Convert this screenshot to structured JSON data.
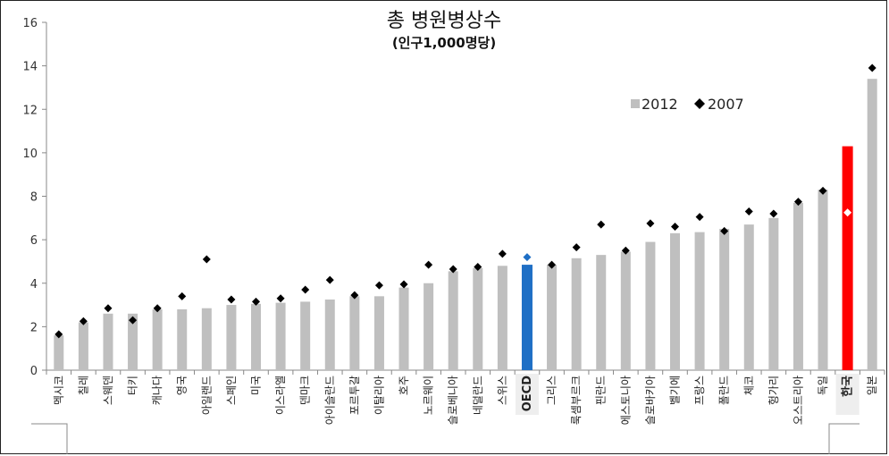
{
  "chart_data": {
    "type": "bar",
    "title": "총 병원병상수",
    "subtitle": "(인구1,000명당)",
    "ylim": [
      0,
      16
    ],
    "yticks": [
      0,
      2,
      4,
      6,
      8,
      10,
      12,
      14,
      16
    ],
    "grid": false,
    "legend_position": "top-right",
    "categories": [
      "멕시코",
      "칠레",
      "스웨덴",
      "터키",
      "캐나다",
      "영국",
      "아일랜드",
      "스페인",
      "미국",
      "이스라엘",
      "덴마크",
      "아이슬란드",
      "포르투갈",
      "이탈리아",
      "호주",
      "노르웨이",
      "슬로베니아",
      "네덜란드",
      "스위스",
      "OECD",
      "그리스",
      "룩셈부르크",
      "핀란드",
      "에스토니아",
      "슬로바키아",
      "벨기에",
      "프랑스",
      "폴란드",
      "체코",
      "헝가리",
      "오스트리아",
      "독일",
      "한국",
      "일본"
    ],
    "highlight": {
      "OECD": "#1f6fc5",
      "한국": "#ff0000"
    },
    "series": [
      {
        "name": "2012",
        "kind": "bar",
        "color": "#bfbfbf",
        "values": [
          1.6,
          2.2,
          2.6,
          2.6,
          2.8,
          2.8,
          2.85,
          3.0,
          3.05,
          3.1,
          3.15,
          3.25,
          3.4,
          3.4,
          3.8,
          4.0,
          4.55,
          4.7,
          4.8,
          4.85,
          4.85,
          5.15,
          5.3,
          5.45,
          5.9,
          6.3,
          6.35,
          6.5,
          6.7,
          7.0,
          7.7,
          8.3,
          10.3,
          13.4
        ]
      },
      {
        "name": "2007",
        "kind": "marker",
        "color": "#000000",
        "values": [
          1.65,
          2.25,
          2.85,
          2.3,
          2.85,
          3.4,
          5.1,
          3.25,
          3.15,
          3.3,
          3.7,
          4.15,
          3.45,
          3.9,
          3.95,
          4.85,
          4.65,
          4.75,
          5.35,
          5.2,
          4.85,
          5.65,
          6.7,
          5.5,
          6.75,
          6.6,
          7.05,
          6.4,
          7.3,
          7.2,
          7.75,
          8.25,
          7.25,
          13.9
        ]
      }
    ]
  }
}
